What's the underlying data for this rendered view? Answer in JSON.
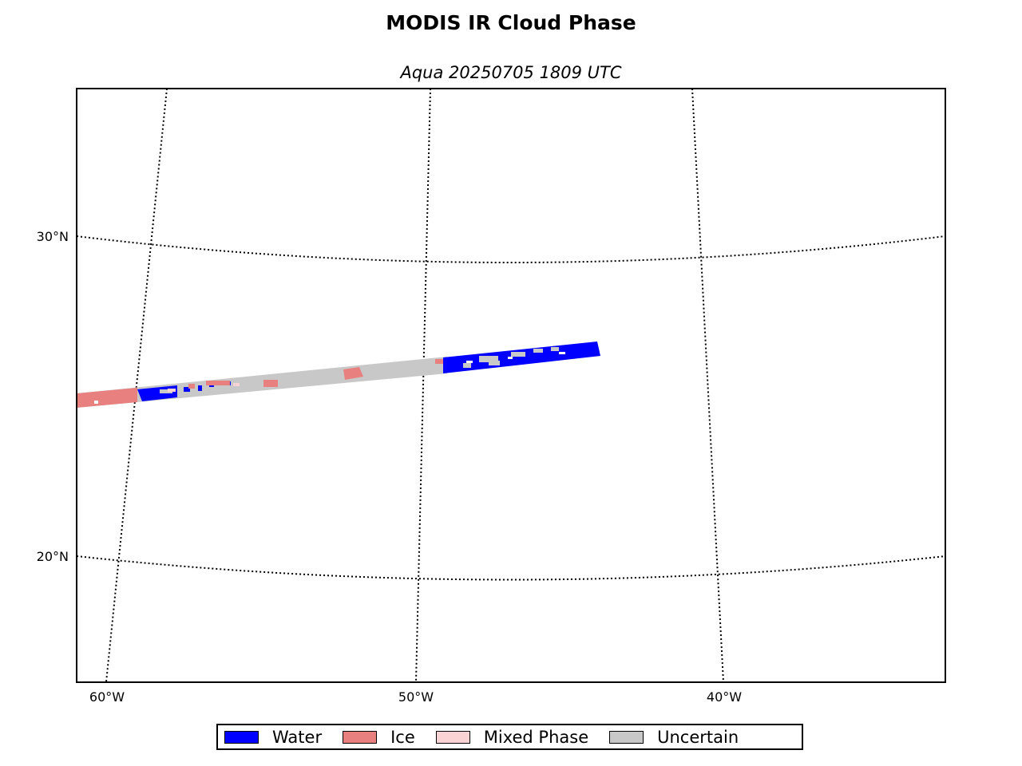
{
  "title": "MODIS IR Cloud Phase",
  "subtitle": "Aqua 20250705 1809 UTC",
  "map": {
    "latitude_labels": [
      "30°N",
      "20°N"
    ],
    "longitude_labels": [
      "60°W",
      "50°W",
      "40°W"
    ],
    "graticule_style": "dotted",
    "swath_description_note": null
  },
  "legend": {
    "placement": "bottom-center",
    "items": [
      {
        "label": "Water",
        "color": "#0000ff"
      },
      {
        "label": "Ice",
        "color": "#e88080"
      },
      {
        "label": "Mixed Phase",
        "color": "#fad4d4"
      },
      {
        "label": "Uncertain",
        "color": "#c8c8c8"
      }
    ]
  },
  "colors": {
    "water": "#0000ff",
    "ice": "#e88080",
    "mixed_phase": "#fad4d4",
    "uncertain": "#c8c8c8",
    "frame": "#000000"
  }
}
